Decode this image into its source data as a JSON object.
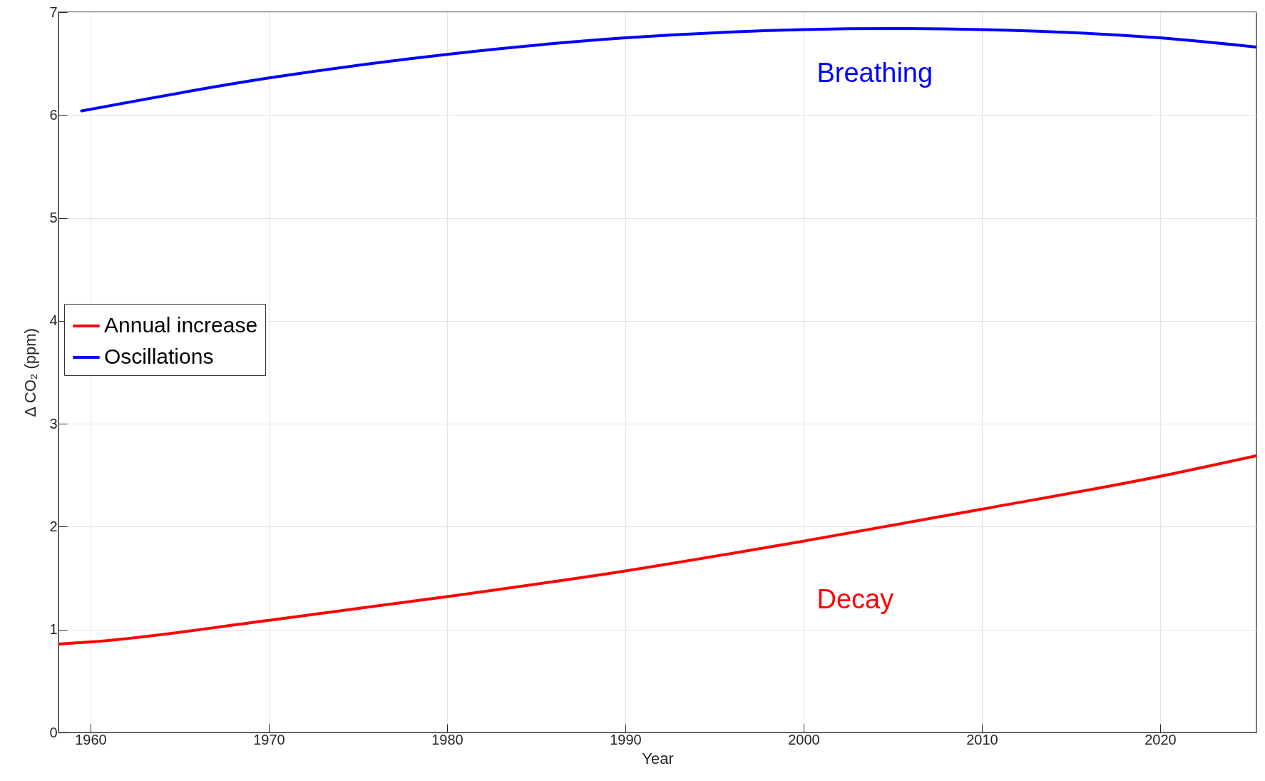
{
  "chart_data": {
    "type": "line",
    "xlabel": "Year",
    "ylabel": "Δ CO₂ (ppm)",
    "xlim": [
      1958.2,
      2025.4
    ],
    "xticks": [
      1960,
      1970,
      1980,
      1990,
      2000,
      2010,
      2020
    ],
    "ylim": [
      0,
      7
    ],
    "yticks": [
      0,
      1,
      2,
      3,
      4,
      5,
      6,
      7
    ],
    "grid": true,
    "legend": "left",
    "line_style": "solid",
    "series": [
      {
        "name": "Annual increase",
        "color": "#ff0000",
        "x": [
          1958.2,
          1960,
          1970,
          1980,
          1990,
          2000,
          2010,
          2020,
          2025.4
        ],
        "values": [
          0.86,
          0.88,
          1.09,
          1.32,
          1.57,
          1.86,
          2.17,
          2.49,
          2.69
        ]
      },
      {
        "name": "Oscillations",
        "color": "#0000ff",
        "x": [
          1959.5,
          1970,
          1980,
          1990,
          2000,
          2005,
          2010,
          2020,
          2025.4
        ],
        "values": [
          6.04,
          6.36,
          6.59,
          6.75,
          6.83,
          6.84,
          6.83,
          6.75,
          6.66
        ]
      }
    ],
    "annotations": [
      "Breathing",
      "Decay"
    ]
  }
}
